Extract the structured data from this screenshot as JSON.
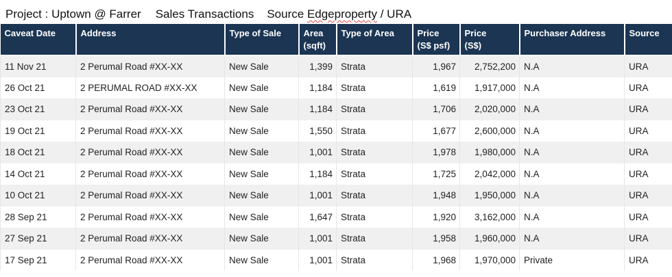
{
  "title": {
    "project": "Project : Uptown @ Farrer",
    "section": "Sales Transactions",
    "source_prefix": "Source ",
    "source_name": "Edgeproperty",
    "source_suffix": " / URA"
  },
  "table": {
    "headers": {
      "caveat_date": "Caveat Date",
      "address": "Address",
      "type_of_sale": "Type of Sale",
      "area_line1": "Area",
      "area_line2": "(sqft)",
      "type_of_area": "Type of Area",
      "psf_line1": "Price",
      "psf_line2": "(S$ psf)",
      "price_line1": "Price",
      "price_line2": "(S$)",
      "purchaser_address": "Purchaser Address",
      "source": "Source"
    },
    "rows": [
      {
        "date": "11 Nov 21",
        "address": "2 Perumal Road #XX-XX",
        "sale": "New Sale",
        "area": "1,399",
        "area_type": "Strata",
        "psf": "1,967",
        "price": "2,752,200",
        "purchaser": "N.A",
        "source": "URA"
      },
      {
        "date": "26 Oct 21",
        "address": "2 PERUMAL ROAD #XX-XX",
        "sale": "New Sale",
        "area": "1,184",
        "area_type": "Strata",
        "psf": "1,619",
        "price": "1,917,000",
        "purchaser": "N.A",
        "source": "URA"
      },
      {
        "date": "23 Oct 21",
        "address": "2 Perumal Road #XX-XX",
        "sale": "New Sale",
        "area": "1,184",
        "area_type": "Strata",
        "psf": "1,706",
        "price": "2,020,000",
        "purchaser": "N.A",
        "source": "URA"
      },
      {
        "date": "19 Oct 21",
        "address": "2 Perumal Road #XX-XX",
        "sale": "New Sale",
        "area": "1,550",
        "area_type": "Strata",
        "psf": "1,677",
        "price": "2,600,000",
        "purchaser": "N.A",
        "source": "URA"
      },
      {
        "date": "18 Oct 21",
        "address": "2 Perumal Road #XX-XX",
        "sale": "New Sale",
        "area": "1,001",
        "area_type": "Strata",
        "psf": "1,978",
        "price": "1,980,000",
        "purchaser": "N.A",
        "source": "URA"
      },
      {
        "date": "14 Oct 21",
        "address": "2 Perumal Road #XX-XX",
        "sale": "New Sale",
        "area": "1,184",
        "area_type": "Strata",
        "psf": "1,725",
        "price": "2,042,000",
        "purchaser": "N.A",
        "source": "URA"
      },
      {
        "date": "10 Oct 21",
        "address": "2 Perumal Road #XX-XX",
        "sale": "New Sale",
        "area": "1,001",
        "area_type": "Strata",
        "psf": "1,948",
        "price": "1,950,000",
        "purchaser": "N.A",
        "source": "URA"
      },
      {
        "date": "28 Sep 21",
        "address": "2 Perumal Road #XX-XX",
        "sale": "New Sale",
        "area": "1,647",
        "area_type": "Strata",
        "psf": "1,920",
        "price": "3,162,000",
        "purchaser": "N.A",
        "source": "URA"
      },
      {
        "date": "27 Sep 21",
        "address": "2 Perumal Road #XX-XX",
        "sale": "New Sale",
        "area": "1,001",
        "area_type": "Strata",
        "psf": "1,958",
        "price": "1,960,000",
        "purchaser": "N.A",
        "source": "URA"
      },
      {
        "date": "17 Sep 21",
        "address": "2 Perumal Road #XX-XX",
        "sale": "New Sale",
        "area": "1,001",
        "area_type": "Strata",
        "psf": "1,968",
        "price": "1,970,000",
        "purchaser": "Private",
        "source": "URA"
      }
    ]
  },
  "colors": {
    "header_bg": "#1b3553",
    "header_text": "#ffffff",
    "row_alt_bg": "#f0f0f0"
  }
}
